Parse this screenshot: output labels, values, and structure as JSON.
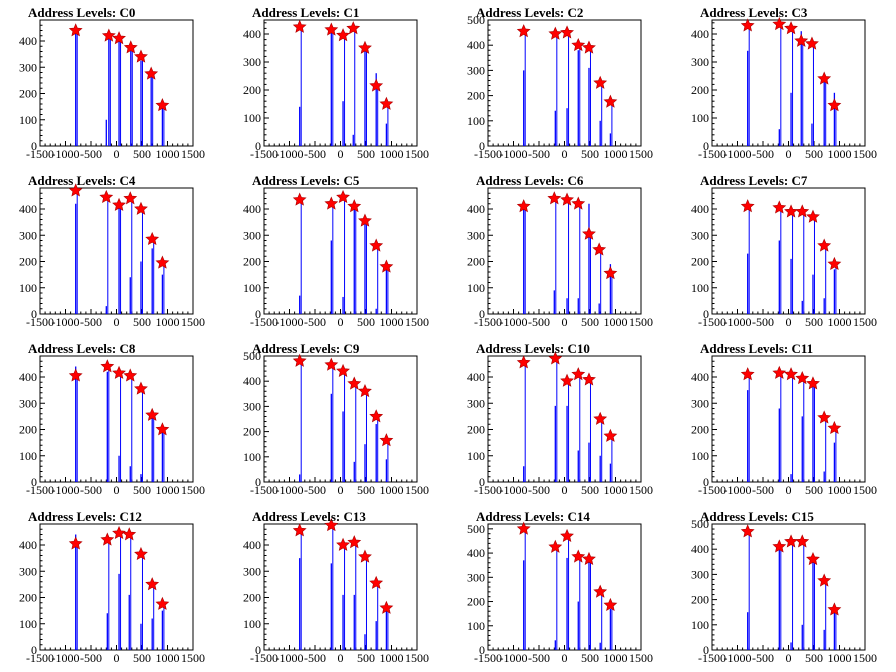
{
  "chart_data": [
    {
      "type": "bar",
      "title": "Address Levels: C0",
      "xlim": [
        -1500,
        1500
      ],
      "ylim": [
        0,
        480
      ],
      "yticks": [
        0,
        100,
        200,
        300,
        400
      ],
      "xticks": [
        -1500,
        -1000,
        -500,
        0,
        500,
        1000,
        1500
      ],
      "bars": [
        [
          -800,
          430
        ],
        [
          -200,
          100
        ],
        [
          -150,
          410
        ],
        [
          50,
          400
        ],
        [
          280,
          370
        ],
        [
          480,
          325
        ],
        [
          680,
          270
        ],
        [
          900,
          150
        ]
      ],
      "peaks": [
        [
          -800,
          440
        ],
        [
          -150,
          420
        ],
        [
          50,
          410
        ],
        [
          280,
          375
        ],
        [
          480,
          340
        ],
        [
          680,
          275
        ],
        [
          900,
          155
        ]
      ]
    },
    {
      "type": "bar",
      "title": "Address Levels: C1",
      "xlim": [
        -1500,
        1500
      ],
      "ylim": [
        0,
        450
      ],
      "yticks": [
        0,
        100,
        200,
        300,
        400
      ],
      "xticks": [
        -1500,
        -1000,
        -500,
        0,
        500,
        1000,
        1500
      ],
      "bars": [
        [
          -800,
          140
        ],
        [
          -180,
          410
        ],
        [
          50,
          160
        ],
        [
          250,
          40
        ],
        [
          480,
          360
        ],
        [
          700,
          260
        ],
        [
          900,
          80
        ]
      ],
      "peaks": [
        [
          -800,
          425
        ],
        [
          -180,
          415
        ],
        [
          50,
          395
        ],
        [
          250,
          420
        ],
        [
          480,
          350
        ],
        [
          700,
          215
        ],
        [
          900,
          150
        ]
      ]
    },
    {
      "type": "bar",
      "title": "Address Levels: C2",
      "xlim": [
        -1500,
        1500
      ],
      "ylim": [
        0,
        500
      ],
      "yticks": [
        0,
        100,
        200,
        300,
        400,
        500
      ],
      "xticks": [
        -1500,
        -1000,
        -500,
        0,
        500,
        1000,
        1500
      ],
      "bars": [
        [
          -800,
          300
        ],
        [
          -180,
          140
        ],
        [
          50,
          150
        ],
        [
          270,
          380
        ],
        [
          480,
          310
        ],
        [
          700,
          100
        ],
        [
          900,
          50
        ]
      ],
      "peaks": [
        [
          -800,
          455
        ],
        [
          -180,
          445
        ],
        [
          50,
          450
        ],
        [
          270,
          400
        ],
        [
          480,
          390
        ],
        [
          700,
          250
        ],
        [
          900,
          175
        ]
      ]
    },
    {
      "type": "bar",
      "title": "Address Levels: C3",
      "xlim": [
        -1500,
        1500
      ],
      "ylim": [
        0,
        450
      ],
      "yticks": [
        0,
        100,
        200,
        300,
        400
      ],
      "xticks": [
        -1500,
        -1000,
        -500,
        0,
        500,
        1000,
        1500
      ],
      "bars": [
        [
          -800,
          340
        ],
        [
          -180,
          60
        ],
        [
          50,
          190
        ],
        [
          250,
          410
        ],
        [
          460,
          80
        ],
        [
          700,
          250
        ],
        [
          900,
          190
        ]
      ],
      "peaks": [
        [
          -800,
          430
        ],
        [
          -180,
          435
        ],
        [
          50,
          420
        ],
        [
          250,
          375
        ],
        [
          460,
          365
        ],
        [
          700,
          240
        ],
        [
          900,
          145
        ]
      ]
    },
    {
      "type": "bar",
      "title": "Address Levels: C4",
      "xlim": [
        -1500,
        1500
      ],
      "ylim": [
        0,
        480
      ],
      "yticks": [
        0,
        100,
        200,
        300,
        400
      ],
      "xticks": [
        -1500,
        -1000,
        -500,
        0,
        500,
        1000,
        1500
      ],
      "bars": [
        [
          -800,
          420
        ],
        [
          -200,
          30
        ],
        [
          50,
          420
        ],
        [
          270,
          140
        ],
        [
          480,
          200
        ],
        [
          700,
          250
        ],
        [
          900,
          150
        ]
      ],
      "peaks": [
        [
          -800,
          470
        ],
        [
          -200,
          445
        ],
        [
          50,
          415
        ],
        [
          270,
          440
        ],
        [
          480,
          400
        ],
        [
          700,
          285
        ],
        [
          900,
          195
        ]
      ]
    },
    {
      "type": "bar",
      "title": "Address Levels: C5",
      "xlim": [
        -1500,
        1500
      ],
      "ylim": [
        0,
        480
      ],
      "yticks": [
        0,
        100,
        200,
        300,
        400
      ],
      "xticks": [
        -1500,
        -1000,
        -500,
        0,
        500,
        1000,
        1500
      ],
      "bars": [
        [
          -800,
          70
        ],
        [
          -180,
          280
        ],
        [
          50,
          65
        ],
        [
          270,
          410
        ],
        [
          480,
          370
        ],
        [
          700,
          20
        ],
        [
          900,
          170
        ]
      ],
      "peaks": [
        [
          -800,
          435
        ],
        [
          -180,
          420
        ],
        [
          50,
          445
        ],
        [
          270,
          410
        ],
        [
          480,
          355
        ],
        [
          700,
          260
        ],
        [
          900,
          180
        ]
      ]
    },
    {
      "type": "bar",
      "title": "Address Levels: C6",
      "xlim": [
        -1500,
        1500
      ],
      "ylim": [
        0,
        480
      ],
      "yticks": [
        0,
        100,
        200,
        300,
        400
      ],
      "xticks": [
        -1500,
        -1000,
        -500,
        0,
        500,
        1000,
        1500
      ],
      "bars": [
        [
          -800,
          400
        ],
        [
          -200,
          90
        ],
        [
          50,
          60
        ],
        [
          270,
          60
        ],
        [
          480,
          420
        ],
        [
          680,
          40
        ],
        [
          900,
          190
        ]
      ],
      "peaks": [
        [
          -800,
          410
        ],
        [
          -200,
          440
        ],
        [
          50,
          435
        ],
        [
          270,
          420
        ],
        [
          480,
          305
        ],
        [
          680,
          245
        ],
        [
          900,
          155
        ]
      ]
    },
    {
      "type": "bar",
      "title": "Address Levels: C7",
      "xlim": [
        -1500,
        1500
      ],
      "ylim": [
        0,
        480
      ],
      "yticks": [
        0,
        100,
        200,
        300,
        400
      ],
      "xticks": [
        -1500,
        -1000,
        -500,
        0,
        500,
        1000,
        1500
      ],
      "bars": [
        [
          -800,
          230
        ],
        [
          -180,
          280
        ],
        [
          50,
          210
        ],
        [
          270,
          50
        ],
        [
          480,
          150
        ],
        [
          700,
          60
        ],
        [
          900,
          170
        ]
      ],
      "peaks": [
        [
          -800,
          410
        ],
        [
          -180,
          405
        ],
        [
          50,
          390
        ],
        [
          270,
          390
        ],
        [
          480,
          370
        ],
        [
          700,
          260
        ],
        [
          900,
          190
        ]
      ]
    },
    {
      "type": "bar",
      "title": "Address Levels: C8",
      "xlim": [
        -1500,
        1500
      ],
      "ylim": [
        0,
        480
      ],
      "yticks": [
        0,
        100,
        200,
        300,
        400
      ],
      "xticks": [
        -1500,
        -1000,
        -500,
        0,
        500,
        1000,
        1500
      ],
      "bars": [
        [
          -800,
          440
        ],
        [
          -180,
          420
        ],
        [
          50,
          100
        ],
        [
          270,
          60
        ],
        [
          480,
          30
        ],
        [
          700,
          260
        ],
        [
          900,
          190
        ]
      ],
      "peaks": [
        [
          -800,
          405
        ],
        [
          -180,
          440
        ],
        [
          50,
          415
        ],
        [
          270,
          405
        ],
        [
          480,
          355
        ],
        [
          700,
          255
        ],
        [
          900,
          200
        ]
      ]
    },
    {
      "type": "bar",
      "title": "Address Levels: C9",
      "xlim": [
        -1500,
        1500
      ],
      "ylim": [
        0,
        500
      ],
      "yticks": [
        0,
        100,
        200,
        300,
        400,
        500
      ],
      "xticks": [
        -1500,
        -1000,
        -500,
        0,
        500,
        1000,
        1500
      ],
      "bars": [
        [
          -800,
          30
        ],
        [
          -180,
          350
        ],
        [
          50,
          280
        ],
        [
          270,
          80
        ],
        [
          480,
          150
        ],
        [
          700,
          230
        ],
        [
          900,
          90
        ]
      ],
      "peaks": [
        [
          -800,
          480
        ],
        [
          -180,
          465
        ],
        [
          50,
          440
        ],
        [
          270,
          390
        ],
        [
          480,
          360
        ],
        [
          700,
          260
        ],
        [
          900,
          165
        ]
      ]
    },
    {
      "type": "bar",
      "title": "Address Levels: C10",
      "xlim": [
        -1500,
        1500
      ],
      "ylim": [
        0,
        480
      ],
      "yticks": [
        0,
        100,
        200,
        300,
        400
      ],
      "xticks": [
        -1500,
        -1000,
        -500,
        0,
        500,
        1000,
        1500
      ],
      "bars": [
        [
          -800,
          60
        ],
        [
          -180,
          290
        ],
        [
          50,
          290
        ],
        [
          270,
          120
        ],
        [
          480,
          150
        ],
        [
          700,
          100
        ],
        [
          900,
          70
        ]
      ],
      "peaks": [
        [
          -800,
          455
        ],
        [
          -180,
          470
        ],
        [
          50,
          385
        ],
        [
          270,
          410
        ],
        [
          480,
          390
        ],
        [
          700,
          240
        ],
        [
          900,
          175
        ]
      ]
    },
    {
      "type": "bar",
      "title": "Address Levels: C11",
      "xlim": [
        -1500,
        1500
      ],
      "ylim": [
        0,
        480
      ],
      "yticks": [
        0,
        100,
        200,
        300,
        400
      ],
      "xticks": [
        -1500,
        -1000,
        -500,
        0,
        500,
        1000,
        1500
      ],
      "bars": [
        [
          -800,
          350
        ],
        [
          -180,
          280
        ],
        [
          50,
          30
        ],
        [
          270,
          250
        ],
        [
          480,
          370
        ],
        [
          700,
          40
        ],
        [
          900,
          150
        ]
      ],
      "peaks": [
        [
          -800,
          410
        ],
        [
          -180,
          415
        ],
        [
          50,
          410
        ],
        [
          270,
          395
        ],
        [
          480,
          375
        ],
        [
          700,
          245
        ],
        [
          900,
          205
        ]
      ]
    },
    {
      "type": "bar",
      "title": "Address Levels: C12",
      "xlim": [
        -1500,
        1500
      ],
      "ylim": [
        0,
        480
      ],
      "yticks": [
        0,
        100,
        200,
        300,
        400
      ],
      "xticks": [
        -1500,
        -1000,
        -500,
        0,
        500,
        1000,
        1500
      ],
      "bars": [
        [
          -800,
          440
        ],
        [
          -180,
          140
        ],
        [
          50,
          290
        ],
        [
          250,
          210
        ],
        [
          480,
          100
        ],
        [
          700,
          120
        ],
        [
          900,
          150
        ]
      ],
      "peaks": [
        [
          -800,
          405
        ],
        [
          -180,
          420
        ],
        [
          50,
          445
        ],
        [
          250,
          440
        ],
        [
          480,
          365
        ],
        [
          700,
          250
        ],
        [
          900,
          175
        ]
      ]
    },
    {
      "type": "bar",
      "title": "Address Levels: C13",
      "xlim": [
        -1500,
        1500
      ],
      "ylim": [
        0,
        480
      ],
      "yticks": [
        0,
        100,
        200,
        300,
        400
      ],
      "xticks": [
        -1500,
        -1000,
        -500,
        0,
        500,
        1000,
        1500
      ],
      "bars": [
        [
          -800,
          350
        ],
        [
          -180,
          330
        ],
        [
          50,
          210
        ],
        [
          270,
          210
        ],
        [
          480,
          60
        ],
        [
          700,
          110
        ],
        [
          900,
          150
        ]
      ],
      "peaks": [
        [
          -800,
          455
        ],
        [
          -180,
          475
        ],
        [
          50,
          400
        ],
        [
          270,
          410
        ],
        [
          480,
          355
        ],
        [
          700,
          255
        ],
        [
          900,
          160
        ]
      ]
    },
    {
      "type": "bar",
      "title": "Address Levels: C14",
      "xlim": [
        -1500,
        1500
      ],
      "ylim": [
        0,
        520
      ],
      "yticks": [
        0,
        100,
        200,
        300,
        400,
        500
      ],
      "xticks": [
        -1500,
        -1000,
        -500,
        0,
        500,
        1000,
        1500
      ],
      "bars": [
        [
          -800,
          370
        ],
        [
          -180,
          40
        ],
        [
          50,
          380
        ],
        [
          270,
          200
        ],
        [
          480,
          370
        ],
        [
          700,
          30
        ],
        [
          900,
          170
        ]
      ],
      "peaks": [
        [
          -800,
          500
        ],
        [
          -180,
          425
        ],
        [
          50,
          470
        ],
        [
          270,
          385
        ],
        [
          480,
          375
        ],
        [
          700,
          240
        ],
        [
          900,
          185
        ]
      ]
    },
    {
      "type": "bar",
      "title": "Address Levels: C15",
      "xlim": [
        -1500,
        1500
      ],
      "ylim": [
        0,
        500
      ],
      "yticks": [
        0,
        100,
        200,
        300,
        400,
        500
      ],
      "xticks": [
        -1500,
        -1000,
        -500,
        0,
        500,
        1000,
        1500
      ],
      "bars": [
        [
          -800,
          150
        ],
        [
          -180,
          400
        ],
        [
          50,
          30
        ],
        [
          270,
          100
        ],
        [
          480,
          350
        ],
        [
          700,
          80
        ],
        [
          900,
          150
        ]
      ],
      "peaks": [
        [
          -800,
          470
        ],
        [
          -180,
          410
        ],
        [
          50,
          430
        ],
        [
          270,
          430
        ],
        [
          480,
          360
        ],
        [
          700,
          275
        ],
        [
          900,
          160
        ]
      ]
    }
  ],
  "colors": {
    "bar": "#0000ff",
    "marker": "#ff0000",
    "marker_edge": "#aa0000",
    "axis": "#000000"
  }
}
